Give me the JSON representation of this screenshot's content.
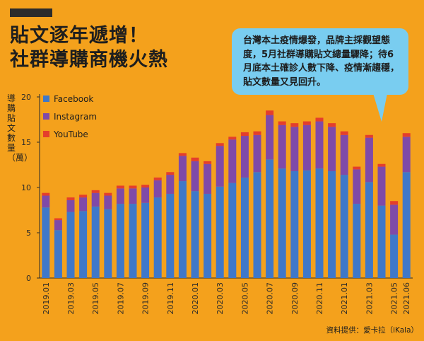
{
  "header": {
    "title_line1": "貼文逐年遞增！",
    "title_line2": "社群導購商機火熱"
  },
  "callout": {
    "text": "台灣本土疫情爆發，品牌主採觀望態度，5月社群導購貼文總量驟降；待6月底本土確診人數下降、疫情漸趨穩，貼文數量又見回升。"
  },
  "source": "資料提供：愛卡拉（iKala）",
  "colors": {
    "facebook": "#3f78c9",
    "instagram": "#7f4aa8",
    "youtube": "#e43e2c",
    "background": "#f4a11c",
    "callout": "#79cdf0"
  },
  "chart_data": {
    "type": "bar",
    "stacked": true,
    "ylabel": "導購貼文數量（萬）",
    "ylim": [
      0,
      20
    ],
    "yticks": [
      0,
      5,
      10,
      15,
      20
    ],
    "grid": false,
    "legend": "top-left",
    "x_tick_labels": [
      "2019.01",
      "2019.03",
      "2019.05",
      "2019.07",
      "2019.09",
      "2019.11",
      "2020.01",
      "2020.03",
      "2020.05",
      "2020.07",
      "2020.09",
      "2020.11",
      "2021.01",
      "2021.03",
      "2021.05",
      "2021.06"
    ],
    "categories": [
      "2019.01",
      "2019.02",
      "2019.03",
      "2019.04",
      "2019.05",
      "2019.06",
      "2019.07",
      "2019.08",
      "2019.09",
      "2019.10",
      "2019.11",
      "2019.12",
      "2020.01",
      "2020.02",
      "2020.03",
      "2020.04",
      "2020.05",
      "2020.06",
      "2020.07",
      "2020.08",
      "2020.09",
      "2020.10",
      "2020.11",
      "2020.12",
      "2021.01",
      "2021.02",
      "2021.03",
      "2021.04",
      "2021.05",
      "2021.06"
    ],
    "series": [
      {
        "name": "Facebook",
        "values": [
          7.8,
          5.3,
          7.3,
          7.4,
          7.9,
          7.6,
          8.2,
          8.2,
          8.3,
          8.9,
          9.3,
          10.7,
          9.6,
          9.3,
          10.1,
          10.5,
          11.1,
          11.7,
          13.1,
          12.1,
          11.8,
          11.9,
          12.1,
          11.8,
          11.4,
          8.2,
          10.6,
          8.0,
          4.8,
          11.7
        ]
      },
      {
        "name": "Instagram",
        "values": [
          1.3,
          1.1,
          1.3,
          1.5,
          1.5,
          1.5,
          1.7,
          1.7,
          1.7,
          1.9,
          2.1,
          2.8,
          3.3,
          3.3,
          4.5,
          4.8,
          4.6,
          4.1,
          4.9,
          4.8,
          4.9,
          5.0,
          5.2,
          4.9,
          4.4,
          3.8,
          4.9,
          4.3,
          3.3,
          3.9
        ]
      },
      {
        "name": "YouTube",
        "values": [
          0.3,
          0.2,
          0.3,
          0.3,
          0.3,
          0.3,
          0.3,
          0.3,
          0.3,
          0.3,
          0.3,
          0.3,
          0.4,
          0.3,
          0.3,
          0.3,
          0.4,
          0.4,
          0.5,
          0.4,
          0.4,
          0.4,
          0.4,
          0.4,
          0.4,
          0.3,
          0.3,
          0.3,
          0.4,
          0.4
        ]
      }
    ]
  }
}
